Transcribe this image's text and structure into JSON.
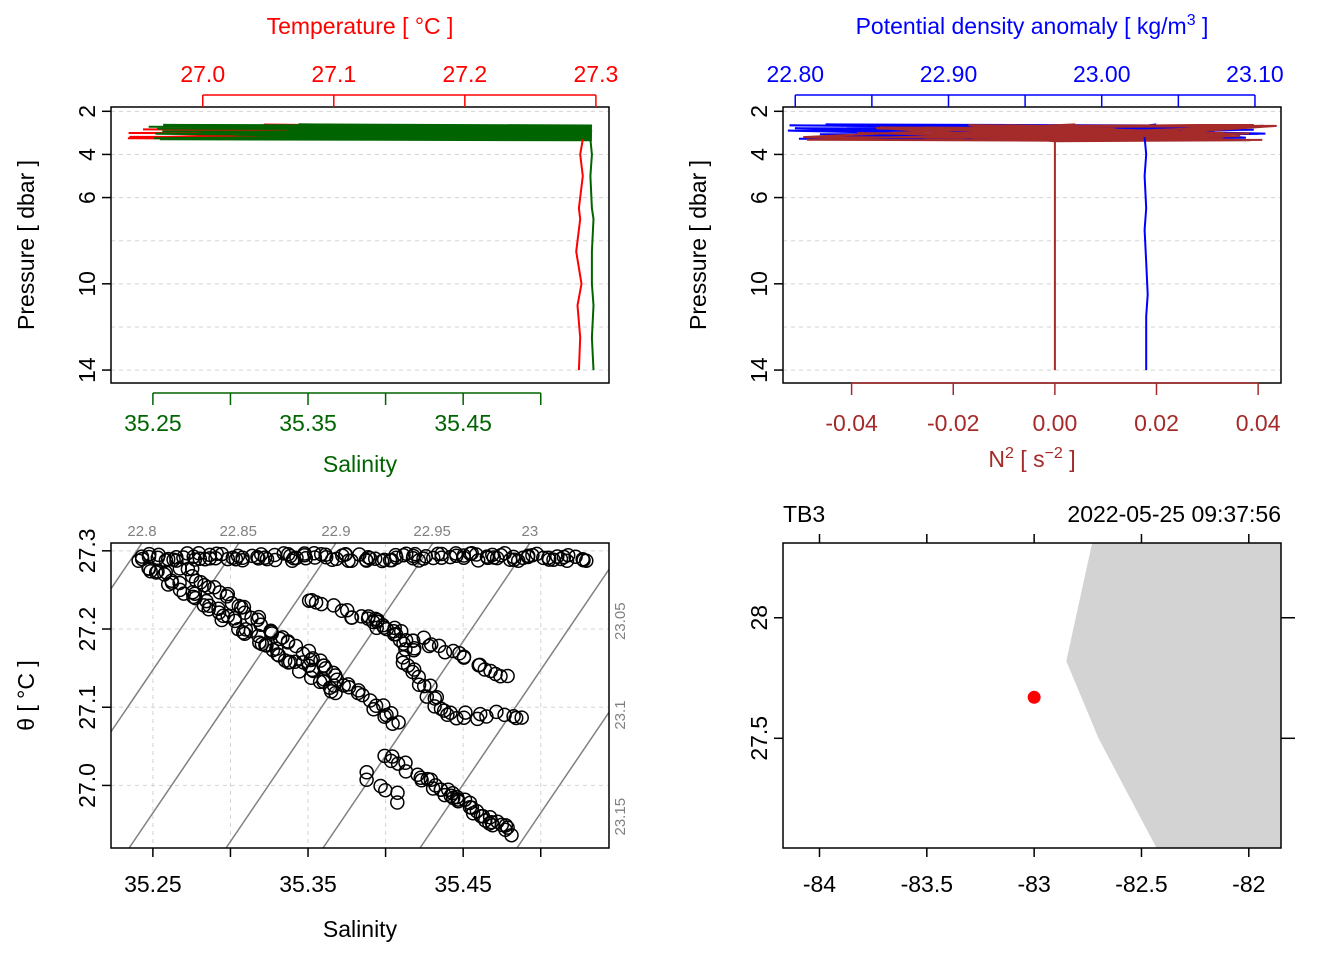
{
  "chart_data": [
    {
      "type": "line",
      "panel": "top-left",
      "title": "",
      "ylabel": "Pressure [ dbar ]",
      "ylim": [
        1.8,
        14.6
      ],
      "yticks": [
        2,
        4,
        6,
        10,
        14
      ],
      "y_grid": [
        2,
        4,
        6,
        8,
        10,
        12,
        14
      ],
      "top_axis": {
        "label": "Temperature [ °C ]",
        "color": "#ff0000",
        "ticks": [
          27.0,
          27.1,
          27.2,
          27.3
        ],
        "tick_labels": [
          "27.0",
          "27.1",
          "27.2",
          "27.3"
        ],
        "range": [
          26.93,
          27.31
        ]
      },
      "bottom_axis": {
        "label": "Salinity",
        "color": "#006400",
        "ticks": [
          35.25,
          35.3,
          35.35,
          35.4,
          35.45,
          35.5
        ],
        "tick_labels": [
          "35.25",
          "35.35",
          "35.45"
        ],
        "range": [
          35.223,
          35.544
        ]
      },
      "series": [
        {
          "name": "Temperature",
          "color": "#ff0000",
          "axis": "top",
          "x": [
            27.29,
            27.288,
            27.29,
            27.287,
            27.288,
            27.285,
            27.289,
            27.286,
            27.288,
            27.287
          ],
          "y": [
            3.3,
            4.0,
            5.0,
            6.5,
            7.0,
            8.5,
            10.0,
            11.0,
            12.5,
            14.0
          ]
        },
        {
          "name": "Salinity",
          "color": "#006400",
          "axis": "bottom",
          "x": [
            35.532,
            35.533,
            35.532,
            35.533,
            35.534,
            35.533,
            35.533,
            35.534,
            35.533,
            35.534
          ],
          "y": [
            3.3,
            4.0,
            5.0,
            6.5,
            7.0,
            8.5,
            10.0,
            11.0,
            12.5,
            14.0
          ]
        }
      ]
    },
    {
      "type": "line",
      "panel": "top-right",
      "title": "",
      "ylabel": "Pressure [ dbar ]",
      "ylim": [
        1.8,
        14.6
      ],
      "yticks": [
        2,
        4,
        6,
        10,
        14
      ],
      "y_grid": [
        2,
        4,
        6,
        8,
        10,
        12,
        14
      ],
      "top_axis": {
        "label": "Potential density anomaly [ kg/m³ ]",
        "label_base": "Potential density anomaly [ kg/m",
        "label_sup": "3",
        "label_end": " ]",
        "color": "#0000ff",
        "ticks": [
          22.8,
          22.85,
          22.9,
          22.95,
          23.0,
          23.05,
          23.1
        ],
        "tick_labels": [
          "22.80",
          "22.90",
          "23.00",
          "23.10"
        ],
        "range": [
          22.792,
          23.117
        ]
      },
      "bottom_axis": {
        "label": "N² [ s⁻² ]",
        "label_base": "N",
        "label_sup": "2",
        "label_mid": " [ s",
        "label_sup2": "−2",
        "label_end": " ]",
        "color": "#a52a2a",
        "ticks": [
          -0.04,
          -0.02,
          0.0,
          0.02,
          0.04
        ],
        "tick_labels": [
          "-0.04",
          "-0.02",
          "0.00",
          "0.02",
          "0.04"
        ],
        "range": [
          -0.0535,
          0.0445
        ]
      },
      "series": [
        {
          "name": "Potential density anomaly",
          "color": "#0000ff",
          "axis": "top",
          "x": [
            23.028,
            23.029,
            23.028,
            23.029,
            23.028,
            23.029,
            23.03,
            23.029,
            23.029,
            23.029
          ],
          "y": [
            3.2,
            4.0,
            5.0,
            6.5,
            7.5,
            9.0,
            10.5,
            11.5,
            12.5,
            14.0
          ]
        },
        {
          "name": "N²",
          "color": "#a52a2a",
          "axis": "bottom",
          "x": [
            0.0,
            0.0,
            0.0,
            0.0,
            0.0,
            0.0,
            0.0,
            0.0
          ],
          "y": [
            3.2,
            4.0,
            6.0,
            7.5,
            9.0,
            11.0,
            12.5,
            14.0
          ]
        }
      ]
    },
    {
      "type": "scatter",
      "panel": "bottom-left",
      "title": "",
      "xlabel": "Salinity",
      "ylabel": "θ [ °C ]",
      "xlim": [
        35.223,
        35.544
      ],
      "ylim": [
        26.92,
        27.31
      ],
      "xticks": [
        35.25,
        35.3,
        35.35,
        35.4,
        35.45,
        35.5
      ],
      "xtick_labels": [
        "35.25",
        "35.35",
        "35.45"
      ],
      "yticks": [
        27.0,
        27.1,
        27.2,
        27.3
      ],
      "ytick_labels": [
        "27.0",
        "27.1",
        "27.2",
        "27.3"
      ],
      "isopycnals": [
        22.8,
        22.85,
        22.9,
        22.95,
        23.0,
        23.05,
        23.1,
        23.15
      ],
      "isopycnal_top_labels": [
        "22.8",
        "22.85",
        "22.9",
        "22.95",
        "23"
      ],
      "isopycnal_right_labels": [
        "23.05",
        "23.1",
        "23.15"
      ],
      "segments": [
        {
          "s0": 35.243,
          "s1": 35.53,
          "t0": 27.292,
          "t1": 27.292,
          "n": 120
        },
        {
          "s0": 35.243,
          "s1": 35.37,
          "t0": 27.285,
          "t1": 27.12,
          "n": 60
        },
        {
          "s0": 35.27,
          "s1": 35.41,
          "t0": 27.28,
          "t1": 27.08,
          "n": 55
        },
        {
          "s0": 35.35,
          "s1": 35.48,
          "t0": 27.24,
          "t1": 27.14,
          "n": 35
        },
        {
          "s0": 35.39,
          "s1": 35.42,
          "t0": 27.22,
          "t1": 27.17,
          "n": 14
        },
        {
          "s0": 35.41,
          "s1": 35.44,
          "t0": 27.16,
          "t1": 27.09,
          "n": 16
        },
        {
          "s0": 35.44,
          "s1": 35.49,
          "t0": 27.09,
          "t1": 27.09,
          "n": 12
        },
        {
          "s0": 35.4,
          "s1": 35.48,
          "t0": 27.04,
          "t1": 26.94,
          "n": 28
        },
        {
          "s0": 35.43,
          "s1": 35.48,
          "t0": 27.0,
          "t1": 26.94,
          "n": 14
        },
        {
          "s0": 35.385,
          "s1": 35.41,
          "t0": 27.02,
          "t1": 26.98,
          "n": 6
        }
      ]
    },
    {
      "type": "map",
      "panel": "bottom-right",
      "title_left": "TB3",
      "title_right": "2022-05-25 09:37:56",
      "xlim": [
        -84.17,
        -81.85
      ],
      "ylim": [
        27.045,
        28.31
      ],
      "xticks": [
        -84,
        -83.5,
        -83,
        -82.5,
        -82
      ],
      "xtick_labels": [
        "-84",
        "-83.5",
        "-83",
        "-82.5",
        "-82"
      ],
      "yticks": [
        27.5,
        28
      ],
      "ytick_labels": [
        "27.5",
        "28"
      ],
      "station": {
        "lon": -83.0,
        "lat": 27.67,
        "color": "#ff0000"
      },
      "land_color": "#d3d3d3",
      "coastline": [
        [
          -82.73,
          28.31
        ],
        [
          -82.85,
          27.82
        ],
        [
          -82.7,
          27.5
        ],
        [
          -82.43,
          27.045
        ]
      ]
    }
  ]
}
